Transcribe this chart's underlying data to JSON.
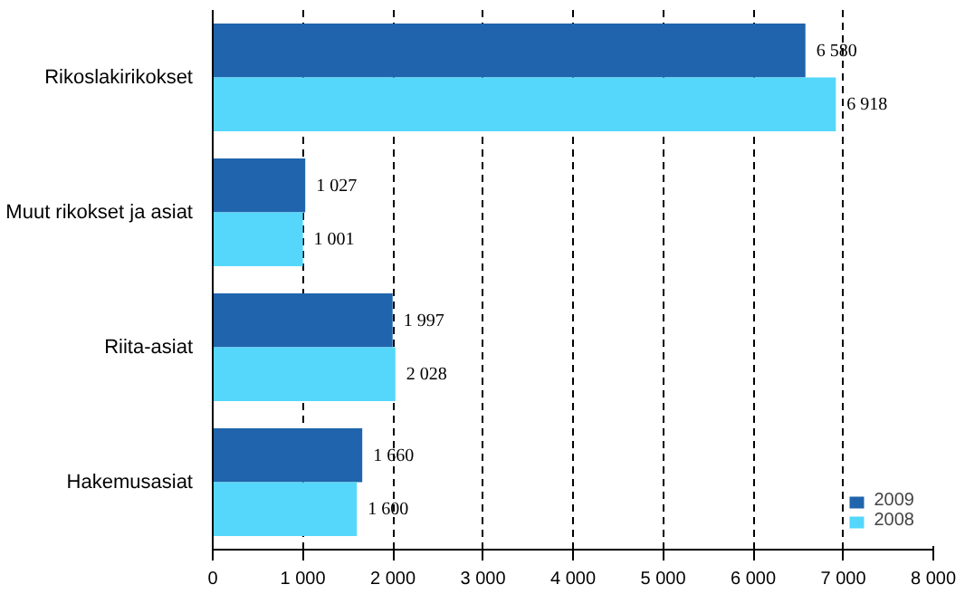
{
  "chart_data": {
    "type": "bar",
    "orientation": "horizontal",
    "categories": [
      "Rikoslakirikokset",
      "Muut rikokset ja asiat",
      "Riita-asiat",
      "Hakemusasiat"
    ],
    "series": [
      {
        "name": "2009",
        "color": "#1f64ac",
        "values": [
          6580,
          1027,
          1997,
          1660
        ],
        "value_labels": [
          "6 580",
          "1 027",
          "1 997",
          "1 660"
        ]
      },
      {
        "name": "2008",
        "color": "#55d7fb",
        "values": [
          6918,
          1001,
          2028,
          1600
        ],
        "value_labels": [
          "6 918",
          "1 001",
          "2 028",
          "1 600"
        ]
      }
    ],
    "xlim": [
      0,
      8000
    ],
    "xticks": [
      0,
      {
        "value": 1000,
        "label": "1 000"
      },
      {
        "value": 2000,
        "label": "2 000"
      },
      {
        "value": 3000,
        "label": "3 000"
      },
      {
        "value": 4000,
        "label": "4 000"
      },
      {
        "value": 5000,
        "label": "5 000"
      },
      {
        "value": 6000,
        "label": "6 000"
      },
      {
        "value": 7000,
        "label": "7 000"
      },
      {
        "value": 8000,
        "label": "8 000"
      }
    ],
    "grid": "x",
    "legend": "bottom right"
  }
}
